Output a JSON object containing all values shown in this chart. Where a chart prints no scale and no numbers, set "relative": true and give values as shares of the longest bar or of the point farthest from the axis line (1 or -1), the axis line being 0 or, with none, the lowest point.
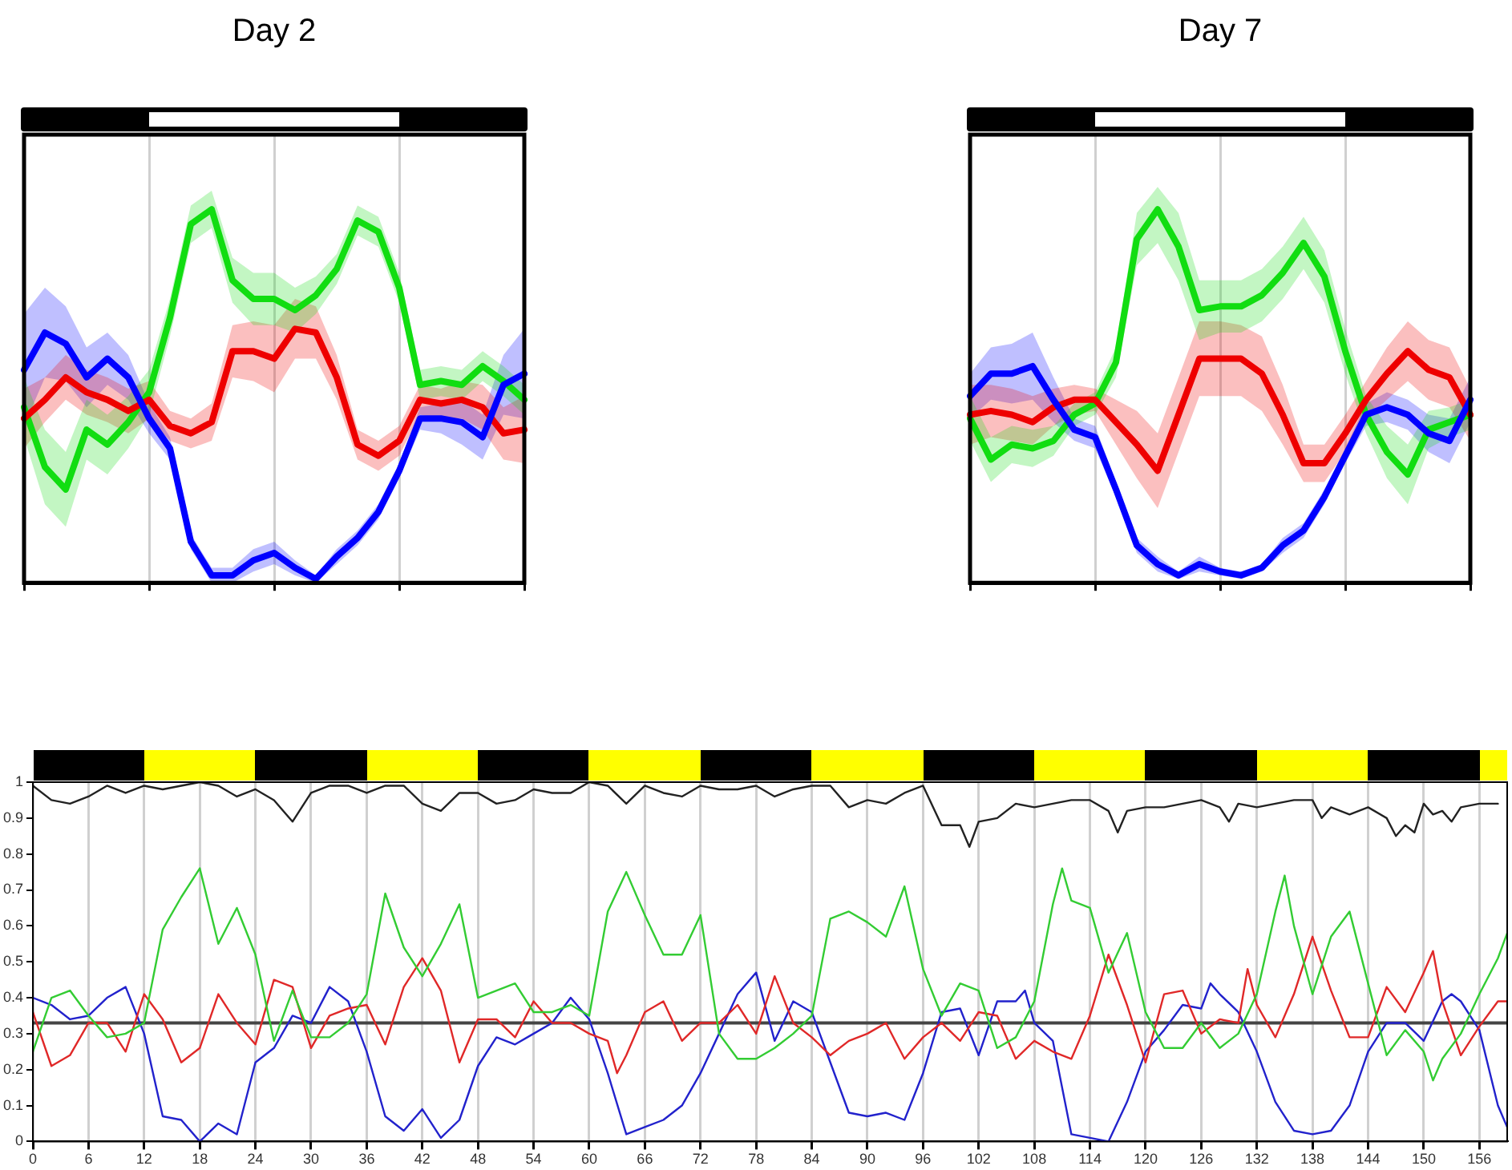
{
  "chart_data": [
    {
      "type": "line",
      "title": "Day 2",
      "relative": true,
      "categories": [
        null,
        null,
        null,
        null,
        null,
        null,
        null,
        null,
        null,
        null,
        null,
        null,
        null,
        null,
        null,
        null,
        null,
        null,
        null,
        null,
        null,
        null,
        null,
        null,
        null
      ],
      "grid": "x",
      "series": [
        {
          "color": "#0000ff",
          "values": [
            0.57,
            0.67,
            0.64,
            0.55,
            0.6,
            0.55,
            0.44,
            0.36,
            0.11,
            0.02,
            0.02,
            0.06,
            0.08,
            0.04,
            0.01,
            0.07,
            0.12,
            0.19,
            0.3,
            0.44,
            0.44,
            0.43,
            0.39,
            0.53,
            0.56
          ],
          "lower": [
            0.42,
            0.55,
            0.54,
            0.47,
            0.53,
            0.49,
            0.4,
            0.33,
            0.09,
            0.0,
            0.0,
            0.03,
            0.05,
            0.02,
            0.0,
            0.05,
            0.1,
            0.17,
            0.28,
            0.41,
            0.4,
            0.37,
            0.33,
            0.45,
            0.44
          ],
          "upper": [
            0.72,
            0.79,
            0.74,
            0.63,
            0.67,
            0.61,
            0.48,
            0.39,
            0.13,
            0.04,
            0.04,
            0.09,
            0.11,
            0.06,
            0.02,
            0.09,
            0.14,
            0.21,
            0.32,
            0.47,
            0.48,
            0.49,
            0.45,
            0.61,
            0.68
          ]
        },
        {
          "color": "#ee0000",
          "values": [
            0.44,
            0.49,
            0.55,
            0.51,
            0.49,
            0.46,
            0.49,
            0.42,
            0.4,
            0.43,
            0.62,
            0.62,
            0.6,
            0.68,
            0.67,
            0.55,
            0.37,
            0.34,
            0.38,
            0.49,
            0.48,
            0.49,
            0.47,
            0.4,
            0.41
          ],
          "lower": [
            0.36,
            0.43,
            0.49,
            0.45,
            0.43,
            0.4,
            0.44,
            0.38,
            0.36,
            0.38,
            0.55,
            0.54,
            0.51,
            0.6,
            0.6,
            0.49,
            0.33,
            0.3,
            0.34,
            0.45,
            0.44,
            0.44,
            0.41,
            0.33,
            0.32
          ],
          "upper": [
            0.52,
            0.55,
            0.61,
            0.57,
            0.55,
            0.52,
            0.54,
            0.46,
            0.44,
            0.48,
            0.69,
            0.7,
            0.69,
            0.76,
            0.74,
            0.61,
            0.41,
            0.38,
            0.42,
            0.53,
            0.52,
            0.54,
            0.53,
            0.47,
            0.5
          ]
        },
        {
          "color": "#11dd11",
          "values": [
            0.47,
            0.31,
            0.25,
            0.41,
            0.37,
            0.43,
            0.51,
            0.71,
            0.96,
            1.0,
            0.81,
            0.76,
            0.76,
            0.73,
            0.77,
            0.84,
            0.97,
            0.94,
            0.79,
            0.53,
            0.54,
            0.53,
            0.58,
            0.54,
            0.49
          ],
          "lower": [
            0.39,
            0.21,
            0.15,
            0.33,
            0.29,
            0.36,
            0.45,
            0.66,
            0.91,
            0.95,
            0.75,
            0.69,
            0.69,
            0.67,
            0.72,
            0.8,
            0.93,
            0.9,
            0.75,
            0.49,
            0.5,
            0.49,
            0.54,
            0.5,
            0.45
          ],
          "upper": [
            0.55,
            0.41,
            0.35,
            0.49,
            0.45,
            0.5,
            0.57,
            0.76,
            1.01,
            1.05,
            0.87,
            0.83,
            0.83,
            0.79,
            0.82,
            0.88,
            1.01,
            0.98,
            0.83,
            0.57,
            0.58,
            0.57,
            0.62,
            0.58,
            0.53
          ]
        }
      ]
    },
    {
      "type": "line",
      "title": "Day 7",
      "relative": true,
      "categories": [
        null,
        null,
        null,
        null,
        null,
        null,
        null,
        null,
        null,
        null,
        null,
        null,
        null,
        null,
        null,
        null,
        null,
        null,
        null,
        null,
        null,
        null,
        null,
        null,
        null
      ],
      "grid": "x",
      "series": [
        {
          "color": "#0000ff",
          "values": [
            0.5,
            0.56,
            0.56,
            0.58,
            0.49,
            0.41,
            0.39,
            0.25,
            0.1,
            0.05,
            0.02,
            0.05,
            0.03,
            0.02,
            0.04,
            0.1,
            0.14,
            0.23,
            0.34,
            0.45,
            0.47,
            0.45,
            0.4,
            0.38,
            0.49
          ],
          "lower": [
            0.44,
            0.49,
            0.48,
            0.49,
            0.43,
            0.38,
            0.36,
            0.23,
            0.08,
            0.03,
            0.01,
            0.03,
            0.02,
            0.01,
            0.03,
            0.08,
            0.12,
            0.21,
            0.32,
            0.42,
            0.43,
            0.41,
            0.35,
            0.32,
            0.43
          ],
          "upper": [
            0.56,
            0.63,
            0.64,
            0.67,
            0.55,
            0.44,
            0.42,
            0.27,
            0.12,
            0.07,
            0.03,
            0.07,
            0.04,
            0.03,
            0.05,
            0.12,
            0.16,
            0.25,
            0.36,
            0.48,
            0.51,
            0.49,
            0.45,
            0.44,
            0.55
          ]
        },
        {
          "color": "#ee0000",
          "values": [
            0.45,
            0.46,
            0.45,
            0.43,
            0.47,
            0.49,
            0.49,
            0.43,
            0.37,
            0.3,
            0.45,
            0.6,
            0.6,
            0.6,
            0.56,
            0.45,
            0.32,
            0.32,
            0.4,
            0.49,
            0.56,
            0.62,
            0.57,
            0.55,
            0.45
          ],
          "lower": [
            0.37,
            0.39,
            0.38,
            0.37,
            0.42,
            0.45,
            0.46,
            0.37,
            0.28,
            0.2,
            0.35,
            0.5,
            0.5,
            0.5,
            0.46,
            0.37,
            0.27,
            0.27,
            0.35,
            0.44,
            0.49,
            0.54,
            0.49,
            0.47,
            0.38
          ],
          "upper": [
            0.53,
            0.53,
            0.52,
            0.5,
            0.52,
            0.53,
            0.52,
            0.49,
            0.46,
            0.4,
            0.55,
            0.7,
            0.7,
            0.69,
            0.66,
            0.53,
            0.37,
            0.37,
            0.45,
            0.54,
            0.63,
            0.7,
            0.65,
            0.63,
            0.52
          ]
        },
        {
          "color": "#11dd11",
          "values": [
            0.44,
            0.33,
            0.37,
            0.36,
            0.38,
            0.45,
            0.48,
            0.59,
            0.92,
            1.0,
            0.9,
            0.73,
            0.74,
            0.74,
            0.77,
            0.83,
            0.91,
            0.82,
            0.62,
            0.45,
            0.35,
            0.29,
            0.41,
            0.43,
            0.45
          ],
          "lower": [
            0.38,
            0.27,
            0.32,
            0.31,
            0.34,
            0.42,
            0.45,
            0.55,
            0.85,
            0.91,
            0.81,
            0.65,
            0.67,
            0.67,
            0.7,
            0.76,
            0.84,
            0.75,
            0.56,
            0.4,
            0.28,
            0.21,
            0.36,
            0.39,
            0.41
          ],
          "upper": [
            0.5,
            0.39,
            0.42,
            0.41,
            0.42,
            0.48,
            0.51,
            0.63,
            0.99,
            1.06,
            0.99,
            0.81,
            0.81,
            0.81,
            0.84,
            0.9,
            0.98,
            0.89,
            0.68,
            0.5,
            0.42,
            0.37,
            0.46,
            0.47,
            0.49
          ]
        }
      ]
    },
    {
      "type": "line",
      "xlim": [
        0,
        159
      ],
      "xticks": [
        0,
        6,
        12,
        18,
        24,
        30,
        36,
        42,
        48,
        54,
        60,
        66,
        72,
        78,
        84,
        90,
        96,
        102,
        108,
        114,
        120,
        126,
        132,
        138,
        144,
        150,
        156
      ],
      "ylim": [
        0,
        1
      ],
      "yticks": [
        0,
        0.1,
        0.2,
        0.3,
        0.4,
        0.5,
        0.6,
        0.7,
        0.8,
        0.9,
        1
      ],
      "grid": "x",
      "ref_lines": [
        {
          "axis": "y",
          "value": 0.33,
          "color": "#444444"
        }
      ],
      "series": [
        {
          "color": "#222222",
          "x": [
            0,
            2,
            4,
            6,
            8,
            10,
            12,
            14,
            16,
            18,
            20,
            22,
            24,
            26,
            28,
            30,
            32,
            34,
            36,
            38,
            40,
            42,
            44,
            46,
            48,
            50,
            52,
            54,
            56,
            58,
            60,
            62,
            64,
            66,
            68,
            70,
            72,
            74,
            76,
            78,
            80,
            82,
            84,
            86,
            88,
            90,
            92,
            94,
            96,
            98,
            100,
            101,
            102,
            104,
            106,
            108,
            110,
            112,
            114,
            116,
            117,
            118,
            120,
            122,
            124,
            126,
            128,
            129,
            130,
            132,
            134,
            136,
            138,
            139,
            140,
            142,
            144,
            146,
            147,
            148,
            149,
            150,
            151,
            152,
            153,
            154,
            156,
            158
          ],
          "values": [
            0.99,
            0.95,
            0.94,
            0.96,
            0.99,
            0.97,
            0.99,
            0.98,
            0.99,
            1.0,
            0.99,
            0.96,
            0.98,
            0.95,
            0.89,
            0.97,
            0.99,
            0.99,
            0.97,
            0.99,
            0.99,
            0.94,
            0.92,
            0.97,
            0.97,
            0.94,
            0.95,
            0.98,
            0.97,
            0.97,
            1.0,
            0.99,
            0.94,
            0.99,
            0.97,
            0.96,
            0.99,
            0.98,
            0.98,
            0.99,
            0.96,
            0.98,
            0.99,
            0.99,
            0.93,
            0.95,
            0.94,
            0.97,
            0.99,
            0.88,
            0.88,
            0.82,
            0.89,
            0.9,
            0.94,
            0.93,
            0.94,
            0.95,
            0.95,
            0.92,
            0.86,
            0.92,
            0.93,
            0.93,
            0.94,
            0.95,
            0.93,
            0.89,
            0.94,
            0.93,
            0.94,
            0.95,
            0.95,
            0.9,
            0.93,
            0.91,
            0.93,
            0.9,
            0.85,
            0.88,
            0.86,
            0.94,
            0.91,
            0.92,
            0.89,
            0.93,
            0.94,
            0.94
          ]
        },
        {
          "color": "#33cc33",
          "x": [
            0,
            2,
            4,
            6,
            8,
            10,
            12,
            14,
            16,
            18,
            20,
            22,
            24,
            26,
            28,
            30,
            32,
            34,
            36,
            38,
            40,
            42,
            44,
            46,
            48,
            50,
            52,
            54,
            56,
            58,
            60,
            62,
            64,
            66,
            68,
            70,
            72,
            74,
            76,
            78,
            80,
            82,
            84,
            86,
            88,
            90,
            92,
            94,
            96,
            98,
            100,
            102,
            104,
            106,
            108,
            110,
            111,
            112,
            114,
            116,
            118,
            120,
            122,
            124,
            126,
            128,
            130,
            132,
            134,
            135,
            136,
            138,
            140,
            142,
            144,
            146,
            148,
            150,
            151,
            152,
            154,
            156,
            158,
            159
          ],
          "values": [
            0.25,
            0.4,
            0.42,
            0.35,
            0.29,
            0.3,
            0.33,
            0.59,
            0.68,
            0.76,
            0.55,
            0.65,
            0.52,
            0.28,
            0.42,
            0.29,
            0.29,
            0.33,
            0.41,
            0.69,
            0.54,
            0.46,
            0.55,
            0.66,
            0.4,
            0.42,
            0.44,
            0.36,
            0.36,
            0.38,
            0.35,
            0.64,
            0.75,
            0.63,
            0.52,
            0.52,
            0.63,
            0.3,
            0.23,
            0.23,
            0.26,
            0.3,
            0.35,
            0.62,
            0.64,
            0.61,
            0.57,
            0.71,
            0.48,
            0.35,
            0.44,
            0.42,
            0.26,
            0.29,
            0.39,
            0.66,
            0.76,
            0.67,
            0.65,
            0.47,
            0.58,
            0.36,
            0.26,
            0.26,
            0.33,
            0.26,
            0.3,
            0.41,
            0.64,
            0.74,
            0.6,
            0.41,
            0.57,
            0.64,
            0.44,
            0.24,
            0.31,
            0.25,
            0.17,
            0.23,
            0.3,
            0.41,
            0.51,
            0.58
          ]
        },
        {
          "color": "#e02828",
          "x": [
            0,
            2,
            4,
            6,
            8,
            10,
            12,
            14,
            16,
            18,
            20,
            22,
            24,
            26,
            28,
            30,
            32,
            34,
            36,
            38,
            40,
            42,
            44,
            46,
            48,
            50,
            52,
            54,
            56,
            58,
            60,
            62,
            63,
            64,
            66,
            68,
            70,
            72,
            74,
            76,
            78,
            80,
            82,
            84,
            86,
            88,
            90,
            92,
            94,
            96,
            98,
            100,
            102,
            104,
            106,
            108,
            110,
            112,
            114,
            116,
            118,
            120,
            122,
            124,
            126,
            128,
            130,
            131,
            132,
            134,
            136,
            138,
            140,
            142,
            144,
            146,
            148,
            150,
            151,
            152,
            154,
            156,
            158,
            159
          ],
          "values": [
            0.36,
            0.21,
            0.24,
            0.33,
            0.33,
            0.25,
            0.41,
            0.34,
            0.22,
            0.26,
            0.41,
            0.33,
            0.27,
            0.45,
            0.43,
            0.26,
            0.35,
            0.37,
            0.38,
            0.27,
            0.43,
            0.51,
            0.42,
            0.22,
            0.34,
            0.34,
            0.29,
            0.39,
            0.33,
            0.33,
            0.3,
            0.28,
            0.19,
            0.24,
            0.36,
            0.39,
            0.28,
            0.33,
            0.33,
            0.38,
            0.3,
            0.46,
            0.33,
            0.29,
            0.24,
            0.28,
            0.3,
            0.33,
            0.23,
            0.29,
            0.33,
            0.28,
            0.36,
            0.35,
            0.23,
            0.28,
            0.25,
            0.23,
            0.35,
            0.52,
            0.38,
            0.22,
            0.41,
            0.42,
            0.3,
            0.34,
            0.33,
            0.48,
            0.38,
            0.29,
            0.41,
            0.57,
            0.42,
            0.29,
            0.29,
            0.43,
            0.36,
            0.47,
            0.53,
            0.39,
            0.24,
            0.32,
            0.39,
            0.39
          ]
        },
        {
          "color": "#2222cc",
          "x": [
            0,
            2,
            4,
            6,
            8,
            10,
            12,
            14,
            16,
            18,
            20,
            22,
            24,
            26,
            28,
            30,
            32,
            34,
            36,
            38,
            40,
            42,
            44,
            46,
            48,
            50,
            52,
            54,
            56,
            58,
            60,
            62,
            64,
            66,
            68,
            70,
            72,
            74,
            76,
            78,
            80,
            82,
            84,
            86,
            88,
            90,
            92,
            94,
            96,
            98,
            100,
            102,
            104,
            106,
            107,
            108,
            110,
            112,
            114,
            116,
            118,
            120,
            122,
            124,
            126,
            127,
            128,
            130,
            132,
            134,
            136,
            138,
            140,
            142,
            144,
            146,
            148,
            150,
            152,
            153,
            154,
            156,
            158,
            159
          ],
          "values": [
            0.4,
            0.38,
            0.34,
            0.35,
            0.4,
            0.43,
            0.3,
            0.07,
            0.06,
            0.0,
            0.05,
            0.02,
            0.22,
            0.26,
            0.35,
            0.33,
            0.43,
            0.39,
            0.25,
            0.07,
            0.03,
            0.09,
            0.01,
            0.06,
            0.21,
            0.29,
            0.27,
            0.3,
            0.33,
            0.4,
            0.34,
            0.19,
            0.02,
            0.04,
            0.06,
            0.1,
            0.19,
            0.3,
            0.41,
            0.47,
            0.28,
            0.39,
            0.36,
            0.22,
            0.08,
            0.07,
            0.08,
            0.06,
            0.19,
            0.36,
            0.37,
            0.24,
            0.39,
            0.39,
            0.42,
            0.33,
            0.28,
            0.02,
            0.01,
            0.0,
            0.11,
            0.25,
            0.31,
            0.38,
            0.37,
            0.44,
            0.41,
            0.36,
            0.25,
            0.11,
            0.03,
            0.02,
            0.03,
            0.1,
            0.25,
            0.33,
            0.33,
            0.28,
            0.39,
            0.41,
            0.39,
            0.31,
            0.1,
            0.04
          ]
        }
      ]
    }
  ]
}
